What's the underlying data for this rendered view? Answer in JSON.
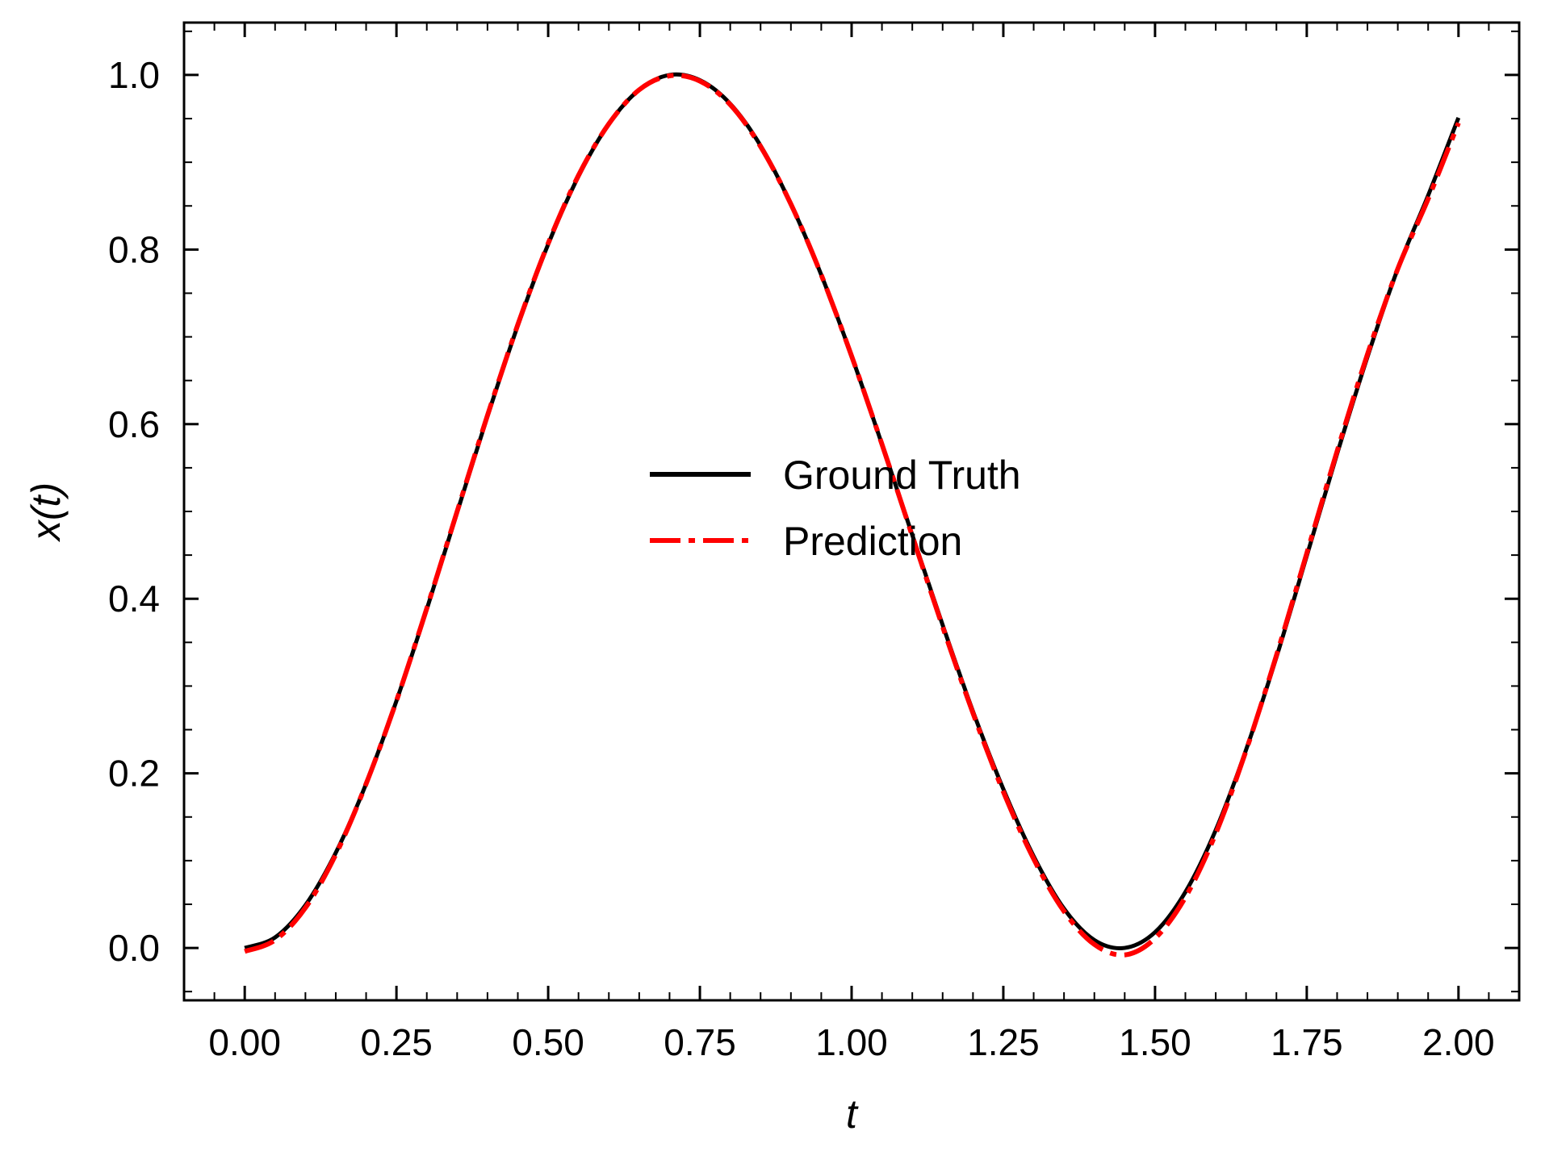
{
  "chart_data": {
    "type": "line",
    "title": "",
    "xlabel": "t",
    "ylabel": "x(t)",
    "xlim": [
      -0.1,
      2.1
    ],
    "ylim": [
      -0.06,
      1.06
    ],
    "xticks": [
      0.0,
      0.25,
      0.5,
      0.75,
      1.0,
      1.25,
      1.5,
      1.75,
      2.0
    ],
    "xtick_labels": [
      "0.00",
      "0.25",
      "0.50",
      "0.75",
      "1.00",
      "1.25",
      "1.50",
      "1.75",
      "2.00"
    ],
    "yticks": [
      0.0,
      0.2,
      0.4,
      0.6,
      0.8,
      1.0
    ],
    "ytick_labels": [
      "0.0",
      "0.2",
      "0.4",
      "0.6",
      "0.8",
      "1.0"
    ],
    "grid": false,
    "legend_position": "center",
    "x": [
      0.0,
      0.05,
      0.1,
      0.15,
      0.2,
      0.25,
      0.3,
      0.35,
      0.4,
      0.45,
      0.5,
      0.55,
      0.6,
      0.65,
      0.7,
      0.75,
      0.8,
      0.85,
      0.9,
      0.95,
      1.0,
      1.05,
      1.1,
      1.15,
      1.2,
      1.25,
      1.3,
      1.35,
      1.4,
      1.45,
      1.5,
      1.55,
      1.6,
      1.65,
      1.7,
      1.75,
      1.8,
      1.85,
      1.9,
      1.95,
      2.0
    ],
    "series": [
      {
        "name": "Ground Truth",
        "color": "#000000",
        "style": "solid",
        "values": [
          0.0,
          0.012,
          0.049,
          0.109,
          0.188,
          0.283,
          0.388,
          0.499,
          0.609,
          0.713,
          0.806,
          0.884,
          0.944,
          0.983,
          1.0,
          0.994,
          0.967,
          0.919,
          0.852,
          0.771,
          0.678,
          0.577,
          0.473,
          0.37,
          0.271,
          0.182,
          0.105,
          0.045,
          0.009,
          0.0,
          0.018,
          0.064,
          0.135,
          0.227,
          0.333,
          0.449,
          0.566,
          0.677,
          0.778,
          0.862,
          0.951
        ]
      },
      {
        "name": "Prediction",
        "color": "#ff0000",
        "style": "dashdot",
        "values": [
          -0.004,
          0.009,
          0.046,
          0.107,
          0.188,
          0.283,
          0.389,
          0.5,
          0.61,
          0.714,
          0.807,
          0.885,
          0.944,
          0.983,
          0.999,
          0.993,
          0.966,
          0.918,
          0.852,
          0.771,
          0.678,
          0.577,
          0.472,
          0.368,
          0.269,
          0.179,
          0.102,
          0.042,
          0.004,
          -0.008,
          0.011,
          0.058,
          0.131,
          0.226,
          0.335,
          0.452,
          0.569,
          0.68,
          0.778,
          0.858,
          0.945
        ]
      }
    ]
  }
}
